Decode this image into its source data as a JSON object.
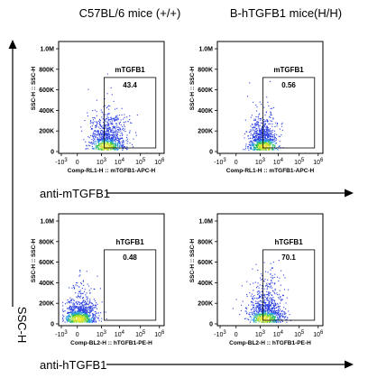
{
  "column_titles": [
    "C57BL/6 mice (+/+)",
    "B-hTGFB1 mice(H/H)"
  ],
  "row_labels": [
    "anti-mTGFB1",
    "anti-hTGFB1"
  ],
  "y_axis_label": "SSC-H",
  "chart_data": [
    {
      "type": "scatter",
      "panel": "top-left",
      "gate_name": "mTGFB1",
      "gate_value": "43.4",
      "xlabel": "Comp-RL1-H :: mTGFB1-APC-H",
      "ylabel": "SSC-H :: SSC-H",
      "xticks": [
        "-10^3",
        "0",
        "10^3",
        "10^4",
        "10^5",
        "10^6"
      ],
      "yticks": [
        "0",
        "200K",
        "400K",
        "600K",
        "800K",
        "1.0M"
      ],
      "ylim": [
        0,
        1000000
      ],
      "gate_x_range": [
        "10^3",
        "10^6"
      ],
      "gate_y_range": [
        0,
        720000
      ],
      "cluster": {
        "x_center": 0.45,
        "y_center": 60000,
        "spread": "wide"
      }
    },
    {
      "type": "scatter",
      "panel": "top-right",
      "gate_name": "mTGFB1",
      "gate_value": "0.56",
      "xlabel": "Comp-RL1-H :: mTGFB1-APC-H",
      "ylabel": "SSC-H :: SSC-H",
      "xticks": [
        "-10^3",
        "0",
        "10^3",
        "10^4",
        "10^5",
        "10^6"
      ],
      "yticks": [
        "0",
        "200K",
        "400K",
        "600K",
        "800K",
        "1.0M"
      ],
      "ylim": [
        0,
        1000000
      ],
      "gate_x_range": [
        "10^3",
        "10^6"
      ],
      "gate_y_range": [
        0,
        720000
      ],
      "cluster": {
        "x_center": 0.4,
        "y_center": 60000,
        "spread": "narrow"
      }
    },
    {
      "type": "scatter",
      "panel": "bottom-left",
      "gate_name": "hTGFB1",
      "gate_value": "0.48",
      "xlabel": "Comp-BL2-H :: hTGFB1-PE-H",
      "ylabel": "SSC-H :: SSC-H",
      "xticks": [
        "-10^3",
        "0",
        "10^3",
        "10^4",
        "10^5",
        "10^6"
      ],
      "yticks": [
        "0",
        "200K",
        "400K",
        "600K",
        "800K",
        "1.0M"
      ],
      "ylim": [
        0,
        1000000
      ],
      "gate_x_range": [
        "10^3",
        "10^6"
      ],
      "gate_y_range": [
        0,
        720000
      ],
      "cluster": {
        "x_center": 0.15,
        "y_center": 60000,
        "spread": "left"
      }
    },
    {
      "type": "scatter",
      "panel": "bottom-right",
      "gate_name": "hTGFB1",
      "gate_value": "70.1",
      "xlabel": "Comp-BL2-H :: hTGFB1-PE-H",
      "ylabel": "SSC-H :: SSC-H",
      "xticks": [
        "-10^3",
        "0",
        "10^3",
        "10^4",
        "10^5",
        "10^6"
      ],
      "yticks": [
        "0",
        "200K",
        "400K",
        "600K",
        "800K",
        "1.0M"
      ],
      "ylim": [
        0,
        1000000
      ],
      "gate_x_range": [
        "10^3",
        "10^6"
      ],
      "gate_y_range": [
        0,
        720000
      ],
      "cluster": {
        "x_center": 0.45,
        "y_center": 60000,
        "spread": "wide"
      }
    }
  ]
}
